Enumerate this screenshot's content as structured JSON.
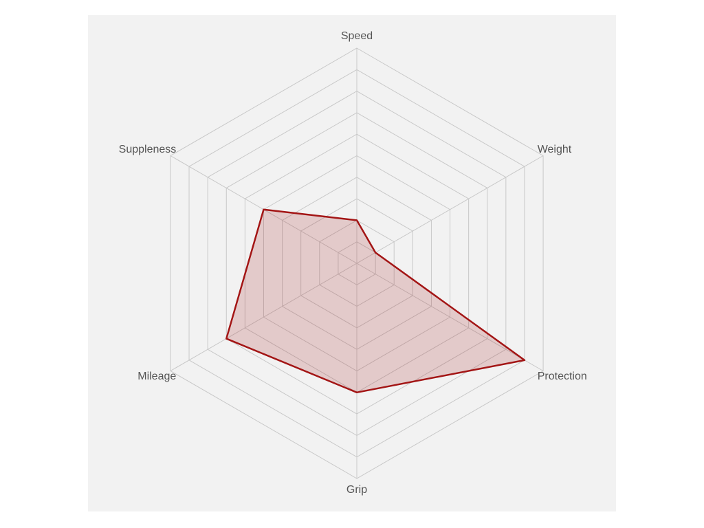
{
  "chart_data": {
    "type": "radar",
    "categories": [
      "Speed",
      "Weight",
      "Protection",
      "Grip",
      "Mileage",
      "Suppleness"
    ],
    "values": [
      2,
      1,
      9,
      6,
      7,
      5
    ],
    "color": "#a31515",
    "ylim": [
      0,
      10
    ],
    "yticks": [
      1,
      2,
      3,
      4,
      5,
      6,
      7,
      8,
      9,
      10
    ],
    "grid": true
  }
}
